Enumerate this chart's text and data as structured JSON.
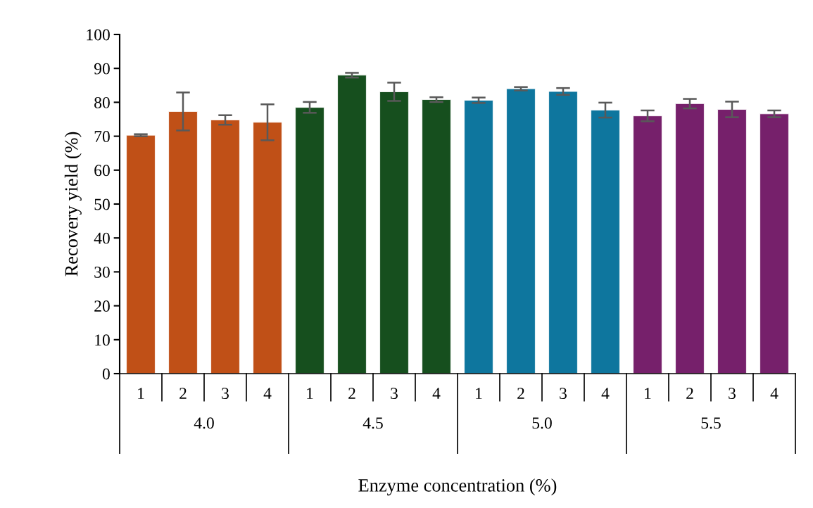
{
  "chart_data": {
    "type": "bar",
    "xlabel": "Enzyme concentration (%)",
    "ylabel": "Recovery yield (%)",
    "categories": [
      "1",
      "2",
      "3",
      "4",
      "1",
      "2",
      "3",
      "4",
      "1",
      "2",
      "3",
      "4",
      "1",
      "2",
      "3",
      "4"
    ],
    "values": [
      70.3,
      77.3,
      74.8,
      74.1,
      78.5,
      88.0,
      83.1,
      80.8,
      80.6,
      84.0,
      83.2,
      77.7,
      76.0,
      79.6,
      77.9,
      76.6
    ],
    "errors": [
      0.3,
      5.6,
      1.4,
      5.3,
      1.6,
      0.7,
      2.7,
      0.7,
      0.8,
      0.5,
      1.0,
      2.2,
      1.6,
      1.4,
      2.3,
      1.0
    ],
    "colors": [
      "#c05017",
      "#c05017",
      "#c05017",
      "#c05017",
      "#164f1e",
      "#164f1e",
      "#164f1e",
      "#164f1e",
      "#0e769e",
      "#0e769e",
      "#0e769e",
      "#0e769e",
      "#76206b",
      "#76206b",
      "#76206b",
      "#76206b"
    ],
    "annotations": [
      "4.0",
      "4.5",
      "5.0",
      "5.5"
    ],
    "ylim": [
      0,
      100
    ],
    "yticks": [
      0,
      10,
      20,
      30,
      40,
      50,
      60,
      70,
      80,
      90,
      100
    ],
    "grid": false,
    "legend": false
  }
}
